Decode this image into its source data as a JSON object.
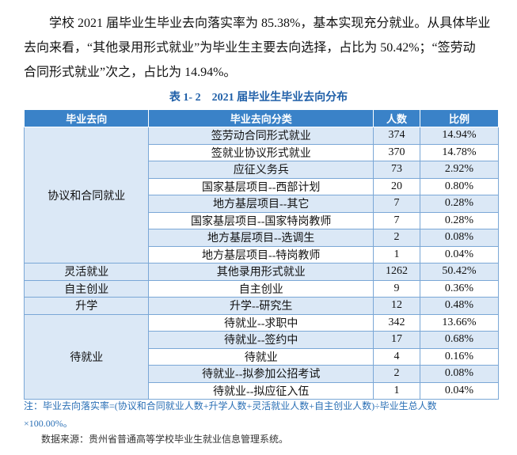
{
  "paragraph": [
    "学校 2021 届毕业生毕业去向落实率为 85.38%，基本实现充分就业。从具体毕业",
    "去向来看，“其他录用形式就业”为毕业生主要去向选择，占比为 50.42%；“签劳动",
    "合同形式就业”次之，占比为 14.94%。"
  ],
  "table": {
    "caption": "表 1- 2　2021 届毕业生毕业去向分布",
    "header": [
      "毕业去向",
      "毕业去向分类",
      "人数",
      "比例"
    ],
    "groups": [
      {
        "name": "协议和合同就业",
        "rows": [
          [
            "签劳动合同形式就业",
            374,
            "14.94%"
          ],
          [
            "签就业协议形式就业",
            370,
            "14.78%"
          ],
          [
            "应征义务兵",
            73,
            "2.92%"
          ],
          [
            "国家基层项目--西部计划",
            20,
            "0.80%"
          ],
          [
            "地方基层项目--其它",
            7,
            "0.28%"
          ],
          [
            "国家基层项目--国家特岗教师",
            7,
            "0.28%"
          ],
          [
            "地方基层项目--选调生",
            2,
            "0.08%"
          ],
          [
            "地方基层项目--特岗教师",
            1,
            "0.04%"
          ]
        ]
      },
      {
        "name": "灵活就业",
        "rows": [
          [
            "其他录用形式就业",
            1262,
            "50.42%"
          ]
        ]
      },
      {
        "name": "自主创业",
        "rows": [
          [
            "自主创业",
            9,
            "0.36%"
          ]
        ]
      },
      {
        "name": "升学",
        "rows": [
          [
            "升学--研究生",
            12,
            "0.48%"
          ]
        ]
      },
      {
        "name": "待就业",
        "rows": [
          [
            "待就业--求职中",
            342,
            "13.66%"
          ],
          [
            "待就业--签约中",
            17,
            "0.68%"
          ],
          [
            "待就业",
            4,
            "0.16%"
          ],
          [
            "待就业--拟参加公招考试",
            2,
            "0.08%"
          ],
          [
            "待就业--拟应征入伍",
            1,
            "0.04%"
          ]
        ]
      }
    ]
  },
  "notes": [
    "注：毕业去向落实率=(协议和合同就业人数+升学人数+灵活就业人数+自主创业人数)÷毕业生总人数",
    "×100.00%。"
  ],
  "source": "数据来源：贵州省普通高等学校毕业生就业信息管理系统。"
}
